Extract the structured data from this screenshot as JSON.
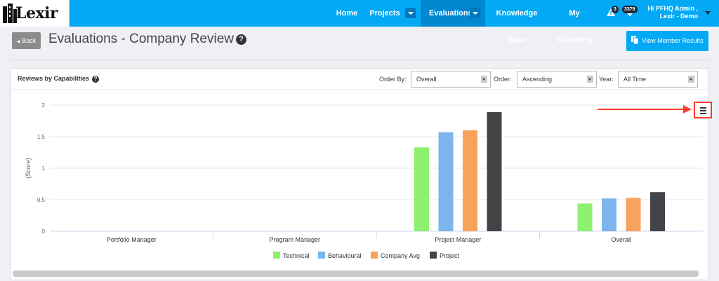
{
  "nav": {
    "logo": "Lexir",
    "items": [
      {
        "label": "Home",
        "active": false,
        "has_dropdown": false
      },
      {
        "label": "Projects",
        "active": false,
        "has_dropdown": true
      },
      {
        "label": "Evaluations",
        "active": true,
        "has_dropdown": true
      },
      {
        "label": "Knowledge Base",
        "active": false,
        "has_dropdown": false
      },
      {
        "label": "My Coaching",
        "active": false,
        "has_dropdown": false
      }
    ],
    "alerts_badge": "3",
    "heart_badge": "3379",
    "user_line1": "Hi PFHQ Admin ,",
    "user_line2": "Lexir - Demo"
  },
  "header": {
    "back_label": "Back",
    "title": "Evaluations - Company Review",
    "view_results_label": "View Member Results"
  },
  "panel": {
    "title": "Reviews by Capabilities",
    "order_by_label": "Order By:",
    "order_by_value": "Overall",
    "order_label": "Order:",
    "order_value": "Ascending",
    "year_label": "Year:",
    "year_value": "All Time"
  },
  "colors": {
    "brand": "#03a9f4",
    "technical": "#8ef06f",
    "behavioural": "#7cb5ec",
    "company_avg": "#f7a35c",
    "project": "#434348",
    "annotation": "#ff3b2f"
  },
  "chart_data": {
    "type": "bar",
    "categories": [
      "Portfolio Manager",
      "Program Manager",
      "Project Manager",
      "Overall"
    ],
    "series": [
      {
        "name": "Technical",
        "values": [
          0,
          0,
          1.33,
          0.44
        ]
      },
      {
        "name": "Behavioural",
        "values": [
          0,
          0,
          1.57,
          0.52
        ]
      },
      {
        "name": "Company Avg",
        "values": [
          0,
          0,
          1.6,
          0.53
        ]
      },
      {
        "name": "Project",
        "values": [
          0,
          0,
          1.89,
          0.62
        ]
      }
    ],
    "ylabel": "(Score)",
    "ylim": [
      0,
      2
    ],
    "yticks": [
      "0",
      "0.5",
      "1",
      "1.5",
      "2"
    ],
    "grid": true,
    "legend": "bottom"
  }
}
